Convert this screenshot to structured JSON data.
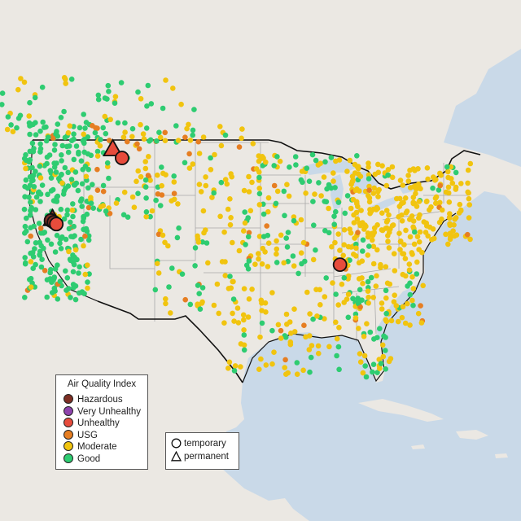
{
  "map": {
    "region": "United States",
    "basemap": "light terrain",
    "colors": {
      "ocean": "#c9d9e8",
      "land": "#ebe8e3",
      "border": "#a9a9a9",
      "national_border": "#111111"
    },
    "markers": [
      {
        "lon": -122.15,
        "lat": 39.95,
        "aqi": "Hazardous",
        "type": "permanent"
      },
      {
        "lon": -122.35,
        "lat": 39.75,
        "aqi": "Hazardous",
        "type": "temporary"
      },
      {
        "lon": -121.95,
        "lat": 39.55,
        "aqi": "Hazardous",
        "type": "temporary"
      },
      {
        "lon": -121.6,
        "lat": 39.35,
        "aqi": "Unhealthy",
        "type": "temporary"
      },
      {
        "lon": -114.0,
        "lat": 47.6,
        "aqi": "Unhealthy",
        "type": "permanent"
      },
      {
        "lon": -112.7,
        "lat": 46.6,
        "aqi": "Unhealthy",
        "type": "temporary"
      },
      {
        "lon": -82.35,
        "lat": 34.9,
        "aqi": "Unhealthy",
        "type": "temporary"
      }
    ]
  },
  "legend_aqi": {
    "title": "Air Quality Index",
    "items": [
      {
        "label": "Hazardous",
        "color": "#7e2f24"
      },
      {
        "label": "Very Unhealthy",
        "color": "#8e44ad"
      },
      {
        "label": "Unhealthy",
        "color": "#e74c3c"
      },
      {
        "label": "USG",
        "color": "#e67e22"
      },
      {
        "label": "Moderate",
        "color": "#f1c40f"
      },
      {
        "label": "Good",
        "color": "#2ecc71"
      }
    ]
  },
  "legend_type": {
    "items": [
      {
        "label": "temporary",
        "shape": "circle"
      },
      {
        "label": "permanent",
        "shape": "triangle"
      }
    ]
  }
}
